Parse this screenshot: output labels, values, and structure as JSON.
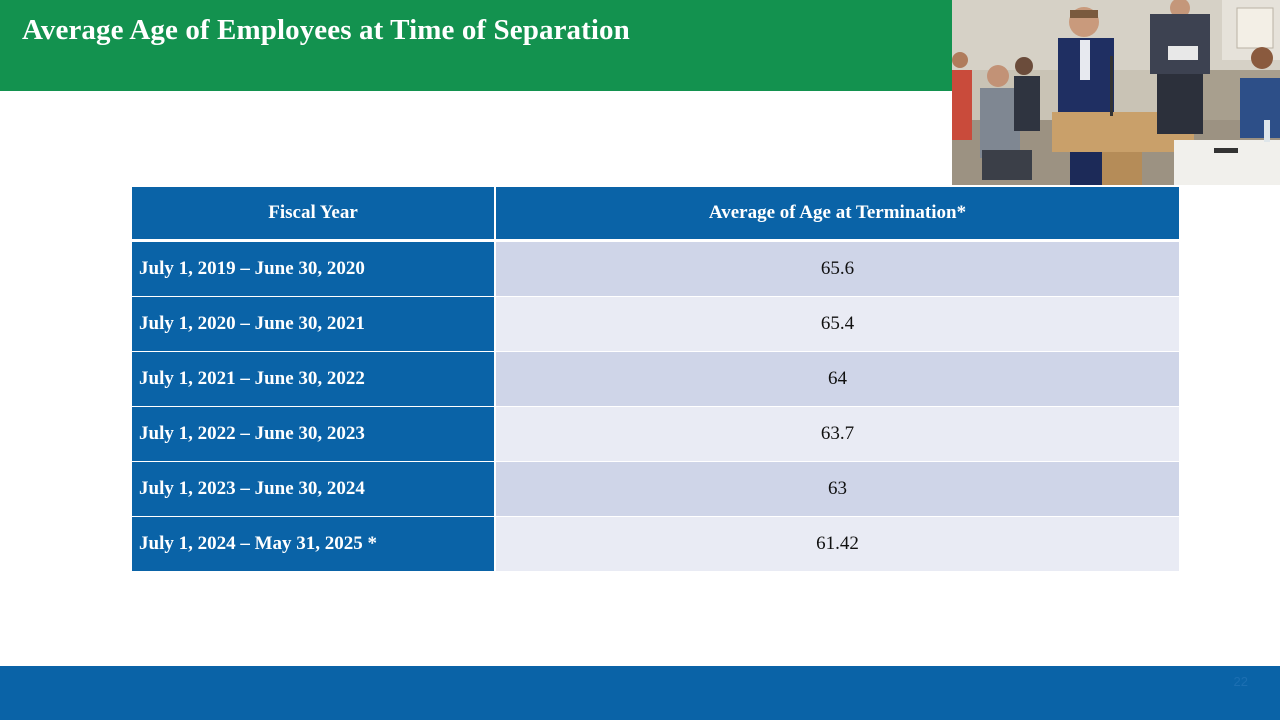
{
  "slide": {
    "title": "Average Age of Employees at Time of Separation",
    "slide_number": "22"
  },
  "table": {
    "headers": [
      "Fiscal Year",
      "Average of Age at Termination*"
    ],
    "rows": [
      {
        "fiscal_year": "July 1, 2019 – June 30, 2020",
        "average_age": "65.6"
      },
      {
        "fiscal_year": "July 1, 2020 – June 30, 2021",
        "average_age": "65.4"
      },
      {
        "fiscal_year": "July 1, 2021 – June 30, 2022",
        "average_age": "64"
      },
      {
        "fiscal_year": "July 1, 2022 – June 30, 2023",
        "average_age": "63.7"
      },
      {
        "fiscal_year": "July 1, 2023 – June 30, 2024",
        "average_age": "63"
      },
      {
        "fiscal_year": "July 1, 2024 – May 31, 2025 *",
        "average_age": "61.42"
      }
    ]
  },
  "colors": {
    "title_bar": "#13924f",
    "table_header": "#0a63a7",
    "row_shade_odd": "#cfd5e8",
    "row_shade_even": "#e9ebf4",
    "footer_bar": "#0a63a7"
  }
}
